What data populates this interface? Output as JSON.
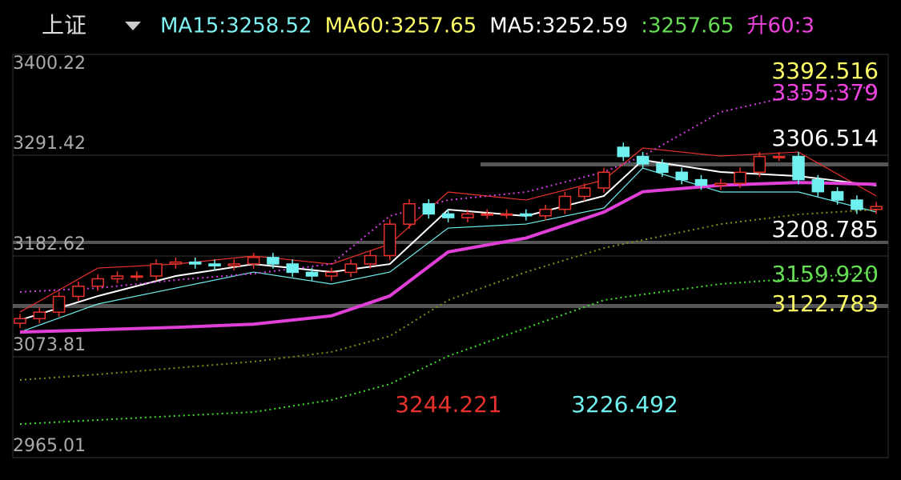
{
  "header": {
    "index": "上证",
    "indicators": [
      {
        "text": "MA15:3258.52",
        "color": "#7ff3f3"
      },
      {
        "text": "MA60:3257.65",
        "color": "#ffff66"
      },
      {
        "text": "MA5:3252.59",
        "color": "#ffffff"
      },
      {
        "text": ":3257.65",
        "color": "#66dd55"
      },
      {
        "text": "升60:3",
        "color": "#ee44dd"
      }
    ]
  },
  "chart_data": {
    "type": "candlestick",
    "open": [
      3110,
      3115,
      3122,
      3139,
      3150,
      3158,
      3161,
      3161,
      3174,
      3176,
      3174,
      3172,
      3174,
      3181,
      3174,
      3165,
      3161,
      3165,
      3174,
      3183,
      3217,
      3239,
      3228,
      3224,
      3228,
      3228,
      3228,
      3226,
      3233,
      3247,
      3256,
      3300,
      3290,
      3282,
      3273,
      3265,
      3259,
      3261,
      3273,
      3290,
      3290,
      3265,
      3252,
      3243,
      3233
    ],
    "close": [
      3115,
      3122,
      3139,
      3150,
      3158,
      3161,
      3161,
      3174,
      3176,
      3174,
      3172,
      3174,
      3181,
      3174,
      3165,
      3161,
      3165,
      3174,
      3183,
      3217,
      3239,
      3228,
      3224,
      3228,
      3228,
      3228,
      3226,
      3233,
      3247,
      3256,
      3273,
      3290,
      3282,
      3273,
      3265,
      3259,
      3261,
      3273,
      3290,
      3290,
      3265,
      3252,
      3243,
      3233,
      3236
    ],
    "high": [
      3120,
      3127,
      3144,
      3155,
      3163,
      3166,
      3166,
      3179,
      3181,
      3181,
      3179,
      3179,
      3186,
      3186,
      3179,
      3170,
      3170,
      3179,
      3188,
      3222,
      3244,
      3244,
      3233,
      3233,
      3233,
      3233,
      3233,
      3238,
      3252,
      3261,
      3278,
      3305,
      3295,
      3287,
      3278,
      3270,
      3266,
      3278,
      3295,
      3295,
      3295,
      3270,
      3257,
      3248,
      3241
    ],
    "low": [
      3105,
      3110,
      3117,
      3134,
      3145,
      3153,
      3156,
      3156,
      3169,
      3169,
      3167,
      3167,
      3169,
      3169,
      3160,
      3156,
      3156,
      3160,
      3169,
      3178,
      3212,
      3223,
      3219,
      3219,
      3223,
      3223,
      3221,
      3221,
      3228,
      3242,
      3251,
      3285,
      3277,
      3268,
      3260,
      3254,
      3254,
      3256,
      3268,
      3285,
      3260,
      3247,
      3238,
      3228,
      3228
    ],
    "up_color": "#e8312b",
    "down_color": "#6ff0f0",
    "series": [
      {
        "color": "#e8312b",
        "style": "solid",
        "width": 1.2,
        "x": [
          0,
          4,
          8,
          12,
          16,
          19,
          22,
          26,
          30,
          32,
          36,
          40,
          44
        ],
        "values": [
          3122.1,
          3169.6,
          3173.9,
          3182.6,
          3173.9,
          3195.5,
          3251.7,
          3243.0,
          3264.6,
          3299.2,
          3290.5,
          3294.8,
          3247.4
        ]
      },
      {
        "color": "#ffffff",
        "style": "solid",
        "width": 2,
        "x": [
          0,
          4,
          8,
          12,
          16,
          19,
          22,
          26,
          30,
          32,
          36,
          40,
          44
        ],
        "values": [
          3113.5,
          3139.4,
          3161.0,
          3173.9,
          3165.3,
          3173.9,
          3232.7,
          3225.8,
          3247.4,
          3286.2,
          3273.3,
          3268.9,
          3258.6
        ]
      },
      {
        "color": "#6ff0f0",
        "style": "solid",
        "width": 1.2,
        "x": [
          0,
          4,
          8,
          12,
          16,
          19,
          22,
          26,
          30,
          32,
          36,
          40,
          44
        ],
        "values": [
          3100.5,
          3130.8,
          3148.0,
          3165.3,
          3152.4,
          3165.3,
          3212.8,
          3217.1,
          3234.4,
          3277.6,
          3251.7,
          3251.7,
          3230.1
        ]
      },
      {
        "color": "#e040d8",
        "style": "solid",
        "width": 4,
        "x": [
          0,
          4,
          8,
          12,
          16,
          19,
          22,
          26,
          30,
          32,
          36,
          40,
          44
        ],
        "values": [
          3100.5,
          3103,
          3105.6,
          3109,
          3118,
          3139.5,
          3187,
          3202,
          3230,
          3252,
          3259,
          3262,
          3260
        ]
      },
      {
        "color": "#d040e0",
        "style": "dotted",
        "width": 2,
        "x": [
          0,
          4,
          8,
          12,
          16,
          19,
          22,
          26,
          30,
          32,
          36,
          40,
          44
        ],
        "values": [
          3143.8,
          3148,
          3156.7,
          3163.6,
          3174,
          3225.8,
          3243,
          3251.7,
          3273.3,
          3290.5,
          3338,
          3357,
          3365.7
        ]
      },
      {
        "color": "#8a8a20",
        "style": "dotted",
        "width": 2,
        "x": [
          0,
          4,
          8,
          12,
          16,
          19,
          22,
          26,
          30,
          32,
          36,
          40,
          44
        ],
        "values": [
          3048.8,
          3054.8,
          3061.7,
          3068.6,
          3079,
          3096.2,
          3135,
          3165.3,
          3191.2,
          3199.9,
          3217,
          3227.5,
          3232.7
        ]
      },
      {
        "color": "#44dd33",
        "style": "dotted",
        "width": 2,
        "x": [
          0,
          4,
          8,
          12,
          16,
          19,
          22,
          26,
          30,
          32,
          36,
          40,
          44
        ],
        "values": [
          3001.2,
          3005.6,
          3010,
          3014.2,
          3027.2,
          3044.4,
          3074.6,
          3104.9,
          3135,
          3141.1,
          3152.4,
          3158.4,
          3165.3
        ]
      }
    ],
    "ylim": [
      2965.01,
      3400.22
    ],
    "yticks": [
      3400.22,
      3291.42,
      3182.62,
      3073.81,
      2965.01
    ],
    "annotations": [
      {
        "text": "3392.516",
        "color": "#ffff66"
      },
      {
        "text": "3355.379",
        "color": "#ee44dd"
      },
      {
        "text": "3306.514",
        "color": "#ffffff"
      },
      {
        "text": "3208.785",
        "color": "#ffffff"
      },
      {
        "text": "3159.920",
        "color": "#66dd55"
      },
      {
        "text": "3122.783",
        "color": "#ffff66"
      },
      {
        "text": "3244.221",
        "color": "#e8312b"
      },
      {
        "text": "3226.492",
        "color": "#6ff0f0"
      }
    ]
  }
}
